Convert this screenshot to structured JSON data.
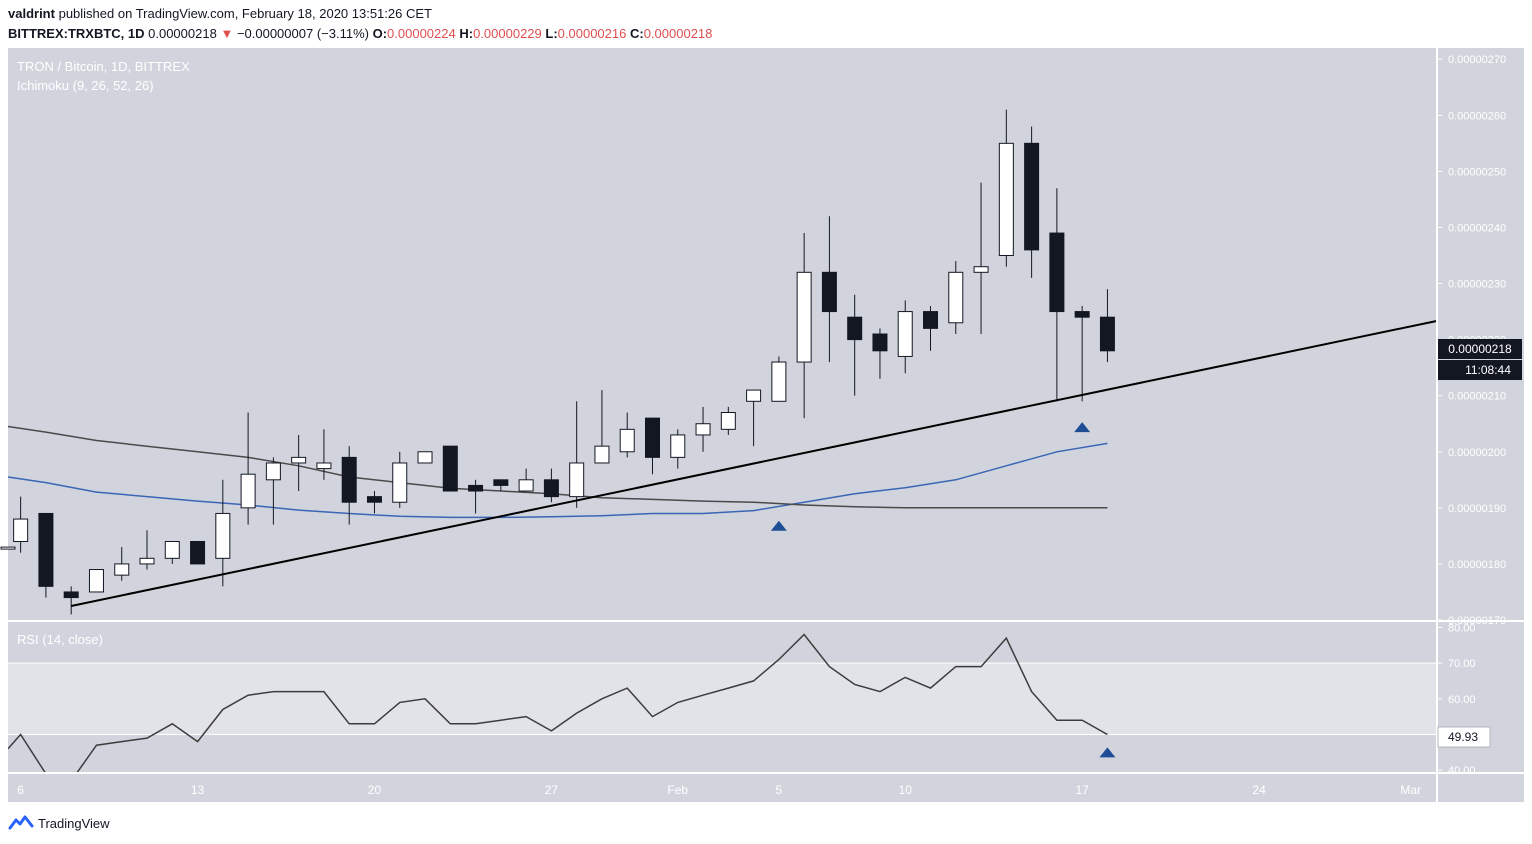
{
  "header": {
    "user": "valdrint",
    "published_text": "published on TradingView.com, February 18, 2020 13:51:26 CET"
  },
  "ohlc_line": {
    "symbol": "BITTREX:TRXBTC, 1D",
    "last": "0.00000218",
    "change_arrow": "▼",
    "change": "−0.00000007 (−3.11%)",
    "o_label": "O:",
    "o": "0.00000224",
    "h_label": "H:",
    "h": "0.00000229",
    "l_label": "L:",
    "l": "0.00000216",
    "c_label": "C:",
    "c": "0.00000218"
  },
  "chart_legend": {
    "title": "TRON / Bitcoin, 1D, BITTREX",
    "indicator": "Ichimoku (9, 26, 52, 26)",
    "rsi": "RSI (14, close)"
  },
  "price_badge": {
    "value": "0.00000218",
    "countdown": "11:08:44"
  },
  "rsi_badge": "49.93",
  "footer": {
    "brand": "TradingView"
  },
  "colors": {
    "pane_bg": "#d1d4dc",
    "rsi_band": "#e2e3e8",
    "bull_fill": "#ffffff",
    "bear_fill": "#131722",
    "ichimoku_blue": "#3a66b5",
    "ichimoku_gray": "#4a4a4a",
    "trendline": "#000000",
    "marker": "#1f4e96"
  },
  "chart_data": [
    {
      "type": "candlestick",
      "title": "TRON / Bitcoin, 1D, BITTREX",
      "y_axis_ticks": [
        "0.00000270",
        "0.00000260",
        "0.00000250",
        "0.00000240",
        "0.00000230",
        "0.00000220",
        "0.00000210",
        "0.00000200",
        "0.00000190",
        "0.00000180",
        "0.00000170"
      ],
      "ylim": [
        1.7,
        2.72
      ],
      "y_unit_scale": "1e-6 BTC",
      "x_ticks": [
        "6",
        "13",
        "20",
        "27",
        "Feb",
        "5",
        "10",
        "17",
        "24",
        "Mar"
      ],
      "x_tick_days": [
        6,
        13,
        20,
        27,
        32,
        36,
        41,
        48,
        55,
        61
      ],
      "x_day_origin": "2020-01-00",
      "xlim": [
        5.5,
        62.0
      ],
      "candles": [
        {
          "d": 5.5,
          "o": 1.83,
          "h": 1.83,
          "l": 1.83,
          "c": 1.83
        },
        {
          "d": 6,
          "o": 1.84,
          "h": 1.92,
          "l": 1.82,
          "c": 1.88
        },
        {
          "d": 7,
          "o": 1.89,
          "h": 1.89,
          "l": 1.74,
          "c": 1.76
        },
        {
          "d": 8,
          "o": 1.75,
          "h": 1.76,
          "l": 1.71,
          "c": 1.74
        },
        {
          "d": 9,
          "o": 1.75,
          "h": 1.79,
          "l": 1.75,
          "c": 1.79
        },
        {
          "d": 10,
          "o": 1.78,
          "h": 1.83,
          "l": 1.77,
          "c": 1.8
        },
        {
          "d": 11,
          "o": 1.8,
          "h": 1.86,
          "l": 1.79,
          "c": 1.81
        },
        {
          "d": 12,
          "o": 1.81,
          "h": 1.84,
          "l": 1.8,
          "c": 1.84
        },
        {
          "d": 13,
          "o": 1.84,
          "h": 1.84,
          "l": 1.8,
          "c": 1.8
        },
        {
          "d": 14,
          "o": 1.81,
          "h": 1.95,
          "l": 1.76,
          "c": 1.89
        },
        {
          "d": 15,
          "o": 1.9,
          "h": 2.07,
          "l": 1.87,
          "c": 1.96
        },
        {
          "d": 16,
          "o": 1.95,
          "h": 1.99,
          "l": 1.87,
          "c": 1.98
        },
        {
          "d": 17,
          "o": 1.98,
          "h": 2.03,
          "l": 1.93,
          "c": 1.99
        },
        {
          "d": 18,
          "o": 1.97,
          "h": 2.04,
          "l": 1.95,
          "c": 1.98
        },
        {
          "d": 19,
          "o": 1.99,
          "h": 2.01,
          "l": 1.87,
          "c": 1.91
        },
        {
          "d": 20,
          "o": 1.92,
          "h": 1.93,
          "l": 1.89,
          "c": 1.91
        },
        {
          "d": 21,
          "o": 1.91,
          "h": 2.0,
          "l": 1.9,
          "c": 1.98
        },
        {
          "d": 22,
          "o": 1.98,
          "h": 2.0,
          "l": 1.98,
          "c": 2.0
        },
        {
          "d": 23,
          "o": 2.01,
          "h": 2.01,
          "l": 1.93,
          "c": 1.93
        },
        {
          "d": 24,
          "o": 1.94,
          "h": 1.95,
          "l": 1.89,
          "c": 1.93
        },
        {
          "d": 25,
          "o": 1.95,
          "h": 1.95,
          "l": 1.93,
          "c": 1.94
        },
        {
          "d": 26,
          "o": 1.93,
          "h": 1.97,
          "l": 1.93,
          "c": 1.95
        },
        {
          "d": 27,
          "o": 1.95,
          "h": 1.97,
          "l": 1.91,
          "c": 1.92
        },
        {
          "d": 28,
          "o": 1.92,
          "h": 2.09,
          "l": 1.9,
          "c": 1.98
        },
        {
          "d": 29,
          "o": 1.98,
          "h": 2.11,
          "l": 1.98,
          "c": 2.01
        },
        {
          "d": 30,
          "o": 2.0,
          "h": 2.07,
          "l": 1.99,
          "c": 2.04
        },
        {
          "d": 31,
          "o": 2.06,
          "h": 2.06,
          "l": 1.96,
          "c": 1.99
        },
        {
          "d": 32,
          "o": 1.99,
          "h": 2.04,
          "l": 1.97,
          "c": 2.03
        },
        {
          "d": 33,
          "o": 2.03,
          "h": 2.08,
          "l": 2.0,
          "c": 2.05
        },
        {
          "d": 34,
          "o": 2.04,
          "h": 2.08,
          "l": 2.03,
          "c": 2.07
        },
        {
          "d": 35,
          "o": 2.09,
          "h": 2.11,
          "l": 2.01,
          "c": 2.11
        },
        {
          "d": 36,
          "o": 2.09,
          "h": 2.17,
          "l": 2.09,
          "c": 2.16
        },
        {
          "d": 37,
          "o": 2.16,
          "h": 2.39,
          "l": 2.06,
          "c": 2.32
        },
        {
          "d": 38,
          "o": 2.32,
          "h": 2.42,
          "l": 2.16,
          "c": 2.25
        },
        {
          "d": 39,
          "o": 2.24,
          "h": 2.28,
          "l": 2.1,
          "c": 2.2
        },
        {
          "d": 40,
          "o": 2.21,
          "h": 2.22,
          "l": 2.13,
          "c": 2.18
        },
        {
          "d": 41,
          "o": 2.17,
          "h": 2.27,
          "l": 2.14,
          "c": 2.25
        },
        {
          "d": 42,
          "o": 2.25,
          "h": 2.26,
          "l": 2.18,
          "c": 2.22
        },
        {
          "d": 43,
          "o": 2.23,
          "h": 2.34,
          "l": 2.21,
          "c": 2.32
        },
        {
          "d": 44,
          "o": 2.32,
          "h": 2.48,
          "l": 2.21,
          "c": 2.33
        },
        {
          "d": 45,
          "o": 2.35,
          "h": 2.61,
          "l": 2.33,
          "c": 2.55
        },
        {
          "d": 46,
          "o": 2.55,
          "h": 2.58,
          "l": 2.31,
          "c": 2.36
        },
        {
          "d": 47,
          "o": 2.39,
          "h": 2.47,
          "l": 2.09,
          "c": 2.25
        },
        {
          "d": 48,
          "o": 2.25,
          "h": 2.26,
          "l": 2.09,
          "c": 2.24
        },
        {
          "d": 49,
          "o": 2.24,
          "h": 2.29,
          "l": 2.16,
          "c": 2.18
        }
      ],
      "ichimoku_lines": [
        {
          "name": "",
          "color": "#3a66b5",
          "points": [
            [
              5.5,
              1.955
            ],
            [
              7,
              1.945
            ],
            [
              9,
              1.928
            ],
            [
              11,
              1.92
            ],
            [
              13,
              1.912
            ],
            [
              15,
              1.905
            ],
            [
              17,
              1.896
            ],
            [
              19,
              1.89
            ],
            [
              21,
              1.885
            ],
            [
              23,
              1.883
            ],
            [
              25,
              1.883
            ],
            [
              27,
              1.884
            ],
            [
              29,
              1.886
            ],
            [
              31,
              1.89
            ],
            [
              33,
              1.89
            ],
            [
              35,
              1.895
            ],
            [
              37,
              1.91
            ],
            [
              39,
              1.925
            ],
            [
              41,
              1.936
            ],
            [
              43,
              1.95
            ],
            [
              45,
              1.975
            ],
            [
              47,
              2.0
            ],
            [
              49,
              2.015
            ]
          ]
        },
        {
          "name": "",
          "color": "#4a4a4a",
          "points": [
            [
              5.5,
              2.045
            ],
            [
              7,
              2.035
            ],
            [
              9,
              2.02
            ],
            [
              11,
              2.01
            ],
            [
              13,
              2.0
            ],
            [
              15,
              1.99
            ],
            [
              17,
              1.975
            ],
            [
              19,
              1.955
            ],
            [
              21,
              1.945
            ],
            [
              23,
              1.935
            ],
            [
              25,
              1.93
            ],
            [
              27,
              1.925
            ],
            [
              29,
              1.918
            ],
            [
              31,
              1.915
            ],
            [
              33,
              1.912
            ],
            [
              35,
              1.91
            ],
            [
              37,
              1.905
            ],
            [
              39,
              1.902
            ],
            [
              41,
              1.9
            ],
            [
              43,
              1.9
            ],
            [
              45,
              1.9
            ],
            [
              47,
              1.9
            ],
            [
              49,
              1.9
            ]
          ]
        }
      ],
      "trendline": [
        [
          8,
          1.725
        ],
        [
          62,
          2.233
        ]
      ],
      "markers": [
        {
          "d": 36,
          "y": 1.868
        },
        {
          "d": 48,
          "y": 2.044
        }
      ]
    },
    {
      "type": "line",
      "title": "RSI (14, close)",
      "y_axis_ticks": [
        "80.00",
        "70.00",
        "60.00",
        "50.00",
        "40.00"
      ],
      "ylim": [
        39.5,
        81.5
      ],
      "band": [
        50,
        70
      ],
      "last_value": 49.93,
      "series": [
        {
          "name": "",
          "values": [
            [
              5.5,
              46
            ],
            [
              6,
              50
            ],
            [
              7,
              39
            ],
            [
              8,
              37
            ],
            [
              9,
              47
            ],
            [
              10,
              48
            ],
            [
              11,
              49
            ],
            [
              12,
              53
            ],
            [
              13,
              48
            ],
            [
              14,
              57
            ],
            [
              15,
              61
            ],
            [
              16,
              62
            ],
            [
              17,
              62
            ],
            [
              18,
              62
            ],
            [
              19,
              53
            ],
            [
              20,
              53
            ],
            [
              21,
              59
            ],
            [
              22,
              60
            ],
            [
              23,
              53
            ],
            [
              24,
              53
            ],
            [
              25,
              54
            ],
            [
              26,
              55
            ],
            [
              27,
              51
            ],
            [
              28,
              56
            ],
            [
              29,
              60
            ],
            [
              30,
              63
            ],
            [
              31,
              55
            ],
            [
              32,
              59
            ],
            [
              33,
              61
            ],
            [
              34,
              63
            ],
            [
              35,
              65
            ],
            [
              36,
              71
            ],
            [
              37,
              78
            ],
            [
              38,
              69
            ],
            [
              39,
              64
            ],
            [
              40,
              62
            ],
            [
              41,
              66
            ],
            [
              42,
              63
            ],
            [
              43,
              69
            ],
            [
              44,
              69
            ],
            [
              45,
              77
            ],
            [
              46,
              62
            ],
            [
              47,
              54
            ],
            [
              48,
              54
            ],
            [
              49,
              50
            ]
          ]
        }
      ],
      "markers": [
        {
          "d": 49,
          "y": 45
        }
      ]
    }
  ]
}
